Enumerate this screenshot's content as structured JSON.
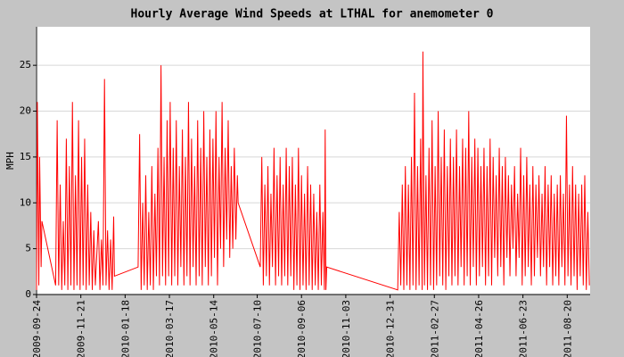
{
  "chart_data": {
    "type": "line",
    "title": "Hourly Average Wind Speeds at LTHAL for anemometer 0",
    "y_label": "MPH",
    "x": [
      "2009-09-24",
      "2009-09-25",
      "2009-09-27",
      "2009-09-28",
      "2009-09-30",
      "2009-10-01",
      "2009-10-19",
      "2009-10-21",
      "2009-10-23",
      "2009-10-25",
      "2009-10-27",
      "2009-10-29",
      "2009-10-31",
      "2009-11-02",
      "2009-11-04",
      "2009-11-06",
      "2009-11-08",
      "2009-11-10",
      "2009-11-12",
      "2009-11-14",
      "2009-11-16",
      "2009-11-18",
      "2009-11-20",
      "2009-11-22",
      "2009-11-24",
      "2009-11-26",
      "2009-11-28",
      "2009-11-30",
      "2009-12-02",
      "2009-12-04",
      "2009-12-06",
      "2009-12-08",
      "2009-12-10",
      "2009-12-14",
      "2009-12-16",
      "2009-12-18",
      "2009-12-20",
      "2009-12-22",
      "2009-12-24",
      "2009-12-26",
      "2009-12-28",
      "2009-12-30",
      "2010-01-01",
      "2010-01-03",
      "2010-01-04",
      "2010-02-04",
      "2010-02-06",
      "2010-02-08",
      "2010-02-10",
      "2010-02-12",
      "2010-02-14",
      "2010-02-16",
      "2010-02-18",
      "2010-02-20",
      "2010-02-22",
      "2010-02-24",
      "2010-02-26",
      "2010-02-28",
      "2010-03-02",
      "2010-03-04",
      "2010-03-06",
      "2010-03-08",
      "2010-03-10",
      "2010-03-12",
      "2010-03-14",
      "2010-03-16",
      "2010-03-18",
      "2010-03-20",
      "2010-03-22",
      "2010-03-24",
      "2010-03-26",
      "2010-03-28",
      "2010-03-30",
      "2010-04-01",
      "2010-04-03",
      "2010-04-05",
      "2010-04-07",
      "2010-04-09",
      "2010-04-11",
      "2010-04-13",
      "2010-04-15",
      "2010-04-17",
      "2010-04-19",
      "2010-04-21",
      "2010-04-23",
      "2010-04-25",
      "2010-04-27",
      "2010-04-29",
      "2010-05-01",
      "2010-05-03",
      "2010-05-05",
      "2010-05-07",
      "2010-05-09",
      "2010-05-11",
      "2010-05-13",
      "2010-05-15",
      "2010-05-17",
      "2010-05-19",
      "2010-05-21",
      "2010-05-23",
      "2010-05-25",
      "2010-05-27",
      "2010-05-29",
      "2010-05-31",
      "2010-06-02",
      "2010-06-04",
      "2010-06-06",
      "2010-06-08",
      "2010-06-10",
      "2010-06-12",
      "2010-06-14",
      "2010-06-15",
      "2010-07-14",
      "2010-07-16",
      "2010-07-18",
      "2010-07-20",
      "2010-07-22",
      "2010-07-24",
      "2010-07-26",
      "2010-07-28",
      "2010-07-30",
      "2010-08-01",
      "2010-08-03",
      "2010-08-05",
      "2010-08-07",
      "2010-08-09",
      "2010-08-11",
      "2010-08-13",
      "2010-08-15",
      "2010-08-17",
      "2010-08-19",
      "2010-08-21",
      "2010-08-23",
      "2010-08-25",
      "2010-08-27",
      "2010-08-29",
      "2010-08-31",
      "2010-09-02",
      "2010-09-04",
      "2010-09-06",
      "2010-09-08",
      "2010-09-10",
      "2010-09-12",
      "2010-09-14",
      "2010-09-16",
      "2010-09-18",
      "2010-09-20",
      "2010-09-22",
      "2010-09-24",
      "2010-09-26",
      "2010-09-28",
      "2010-09-30",
      "2010-10-02",
      "2010-10-04",
      "2010-10-06",
      "2010-10-07",
      "2010-10-08",
      "2010-10-09",
      "2011-01-10",
      "2011-01-12",
      "2011-01-14",
      "2011-01-16",
      "2011-01-18",
      "2011-01-20",
      "2011-01-22",
      "2011-01-24",
      "2011-01-26",
      "2011-01-28",
      "2011-01-30",
      "2011-02-01",
      "2011-02-03",
      "2011-02-05",
      "2011-02-07",
      "2011-02-09",
      "2011-02-11",
      "2011-02-12",
      "2011-02-14",
      "2011-02-16",
      "2011-02-18",
      "2011-02-20",
      "2011-02-22",
      "2011-02-24",
      "2011-02-26",
      "2011-02-28",
      "2011-03-02",
      "2011-03-04",
      "2011-03-06",
      "2011-03-08",
      "2011-03-10",
      "2011-03-12",
      "2011-03-14",
      "2011-03-16",
      "2011-03-18",
      "2011-03-20",
      "2011-03-22",
      "2011-03-24",
      "2011-03-26",
      "2011-03-28",
      "2011-03-30",
      "2011-04-01",
      "2011-04-03",
      "2011-04-05",
      "2011-04-07",
      "2011-04-09",
      "2011-04-11",
      "2011-04-13",
      "2011-04-15",
      "2011-04-17",
      "2011-04-19",
      "2011-04-21",
      "2011-04-23",
      "2011-04-25",
      "2011-04-27",
      "2011-04-29",
      "2011-05-01",
      "2011-05-03",
      "2011-05-05",
      "2011-05-07",
      "2011-05-09",
      "2011-05-11",
      "2011-05-13",
      "2011-05-15",
      "2011-05-17",
      "2011-05-19",
      "2011-05-21",
      "2011-05-23",
      "2011-05-25",
      "2011-05-27",
      "2011-05-29",
      "2011-05-31",
      "2011-06-02",
      "2011-06-04",
      "2011-06-06",
      "2011-06-08",
      "2011-06-10",
      "2011-06-12",
      "2011-06-14",
      "2011-06-16",
      "2011-06-18",
      "2011-06-20",
      "2011-06-22",
      "2011-06-24",
      "2011-06-26",
      "2011-06-28",
      "2011-06-30",
      "2011-07-02",
      "2011-07-04",
      "2011-07-06",
      "2011-07-08",
      "2011-07-10",
      "2011-07-12",
      "2011-07-14",
      "2011-07-16",
      "2011-07-18",
      "2011-07-20",
      "2011-07-22",
      "2011-07-24",
      "2011-07-26",
      "2011-07-28",
      "2011-07-30",
      "2011-08-01",
      "2011-08-03",
      "2011-08-05",
      "2011-08-07",
      "2011-08-09",
      "2011-08-11",
      "2011-08-13",
      "2011-08-15",
      "2011-08-17",
      "2011-08-19",
      "2011-08-21",
      "2011-08-23",
      "2011-08-25",
      "2011-08-27",
      "2011-08-29",
      "2011-08-31",
      "2011-09-02",
      "2011-09-04",
      "2011-09-06",
      "2011-09-08",
      "2011-09-10",
      "2011-09-12",
      "2011-09-14",
      "2011-09-16",
      "2011-09-18"
    ],
    "series": [
      {
        "color": "#ff0000",
        "values": [
          0.5,
          21,
          1,
          15,
          3,
          8,
          1,
          19,
          1,
          12,
          0.5,
          8,
          1,
          17,
          0.5,
          14,
          1,
          21,
          0.5,
          13,
          1,
          19,
          0.5,
          15,
          1,
          17,
          0.5,
          12,
          1,
          9,
          0.5,
          7,
          1,
          8,
          0.5,
          6,
          1,
          23.5,
          1,
          7,
          0.5,
          6,
          0.5,
          8.5,
          2,
          3,
          17.5,
          0.5,
          10,
          1,
          13,
          0.5,
          9,
          1,
          14,
          0.5,
          11,
          2,
          16,
          1,
          25,
          2,
          15,
          1,
          19,
          2,
          21,
          1,
          16,
          2,
          19,
          1,
          14,
          3,
          18,
          1,
          15,
          2,
          21,
          1,
          17,
          3,
          14,
          1,
          19,
          2,
          16,
          1,
          20,
          3,
          15,
          1,
          18,
          2,
          17,
          4,
          20,
          1,
          15,
          5,
          21,
          3,
          16,
          6,
          19,
          4,
          14,
          5,
          16,
          6,
          13,
          10,
          3,
          15,
          1,
          12,
          2,
          14,
          1,
          11,
          3,
          16,
          1,
          13,
          2,
          15,
          1,
          12,
          2,
          16,
          1,
          14,
          2,
          15,
          0.5,
          12,
          1,
          16,
          0.5,
          13,
          1,
          11,
          0.5,
          14,
          1,
          12,
          0.5,
          11,
          1,
          9,
          0.5,
          12,
          1,
          9,
          0.5,
          18,
          0.5,
          3,
          0.5,
          9,
          1,
          12,
          0.5,
          14,
          1,
          12,
          0.5,
          15,
          1,
          22,
          0.5,
          14,
          1,
          17,
          0.5,
          26.5,
          1,
          13,
          0.5,
          16,
          1,
          19,
          0.5,
          14,
          1,
          20,
          2,
          15,
          1,
          18,
          0.5,
          14,
          2,
          17,
          1,
          15,
          2,
          18,
          1,
          14,
          3,
          17,
          1,
          16,
          2,
          20,
          1,
          15,
          3,
          17,
          1,
          16,
          2,
          14,
          3,
          16,
          1,
          14,
          2,
          17,
          1,
          15,
          4,
          13,
          2,
          16,
          3,
          14,
          1,
          15,
          4,
          13,
          2,
          12,
          5,
          14,
          2,
          11,
          4,
          16,
          1,
          13,
          2,
          15,
          3,
          12,
          1,
          14,
          2,
          12,
          4,
          13,
          2,
          11,
          3,
          14,
          1,
          12,
          3,
          13,
          1,
          11,
          2,
          12,
          1,
          13,
          3,
          11,
          1,
          19.5,
          2,
          12,
          1,
          14,
          2,
          12,
          0.5,
          11,
          2,
          12,
          1,
          13,
          0.5,
          9,
          1
        ]
      }
    ],
    "xlim": [
      "2009-09-24",
      "2011-09-19"
    ],
    "xticks": [
      "2009-09-24",
      "2009-11-21",
      "2010-01-18",
      "2010-03-17",
      "2010-05-14",
      "2010-07-10",
      "2010-09-06",
      "2010-11-03",
      "2010-12-31",
      "2011-02-27",
      "2011-04-26",
      "2011-06-23",
      "2011-08-20"
    ],
    "ylim": [
      0,
      29.2
    ],
    "yticks": [
      0,
      5,
      10,
      15,
      20,
      25
    ],
    "grid": true
  }
}
